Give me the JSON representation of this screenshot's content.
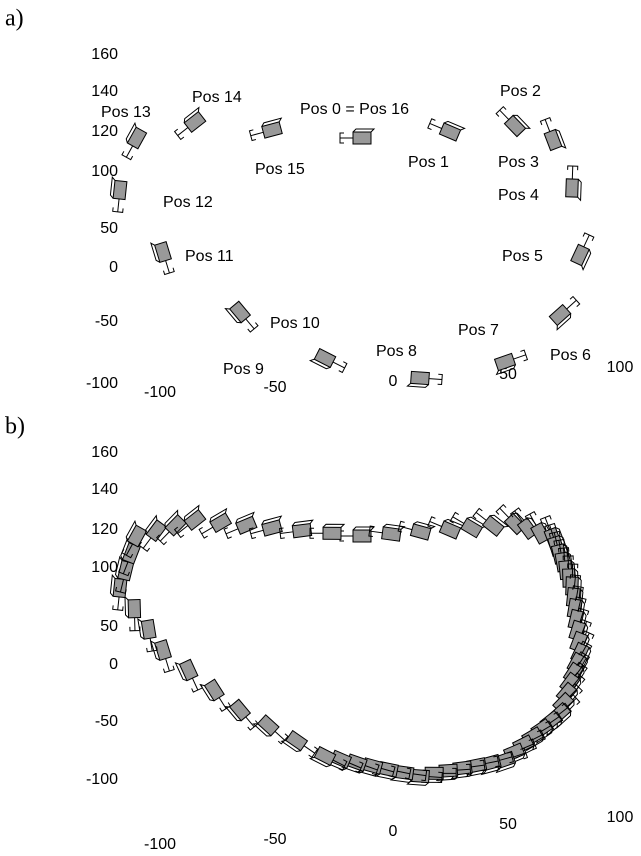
{
  "panels": [
    {
      "label": "a)",
      "yticks": [
        160,
        140,
        120,
        100,
        50,
        0,
        -50,
        -100
      ],
      "xticks": [
        -100,
        -50,
        0,
        50,
        100
      ],
      "positions": [
        "Pos 0 = Pos 16",
        "Pos 1",
        "Pos 2",
        "Pos 3",
        "Pos 4",
        "Pos 5",
        "Pos 6",
        "Pos 7",
        "Pos 8",
        "Pos 9",
        "Pos 10",
        "Pos 11",
        "Pos 12",
        "Pos 13",
        "Pos 14",
        "Pos 15"
      ]
    },
    {
      "label": "b)",
      "yticks": [
        160,
        140,
        120,
        100,
        50,
        0,
        -50,
        -100
      ],
      "xticks": [
        -100,
        -50,
        0,
        50,
        100
      ]
    }
  ]
}
